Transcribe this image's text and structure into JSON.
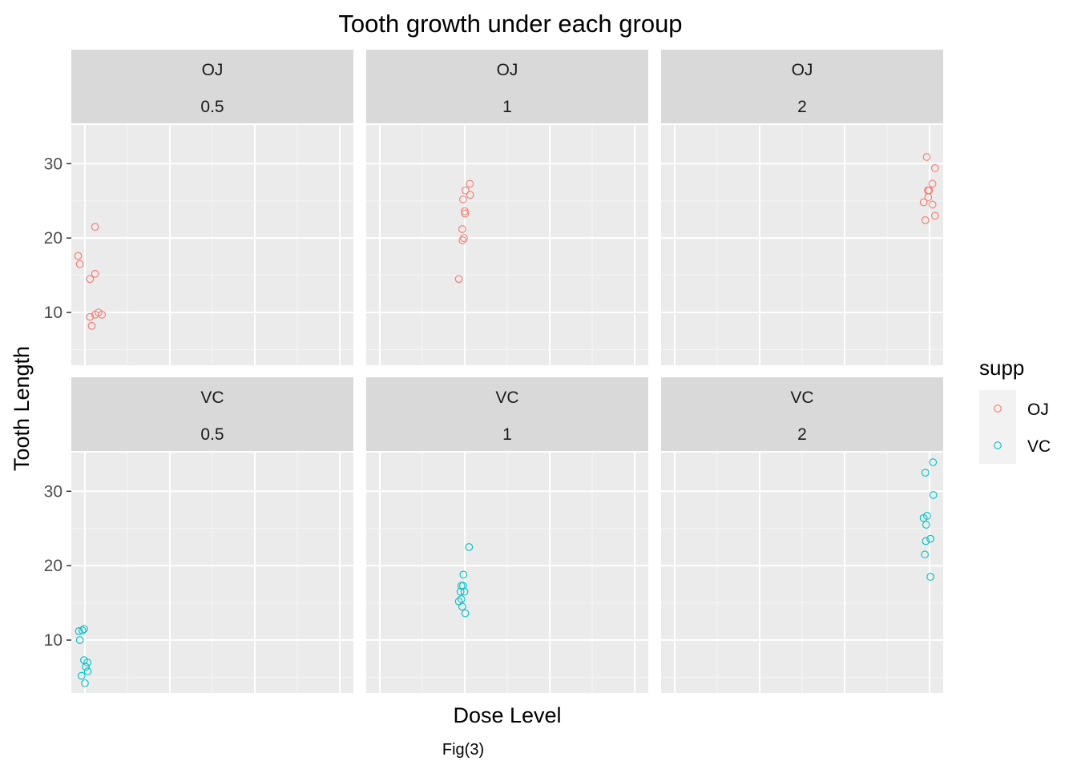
{
  "chart_data": {
    "type": "scatter",
    "title": "Tooth growth under each group",
    "xlabel": "Dose Level",
    "ylabel": "Tooth Length",
    "caption": "Fig(3)",
    "facet_rows": [
      "OJ",
      "VC"
    ],
    "facet_cols": [
      "0.5",
      "1",
      "2"
    ],
    "xlim": [
      0.42,
      2.08
    ],
    "ylim": [
      2.9,
      35.2
    ],
    "y_ticks": [
      10,
      20,
      30
    ],
    "x_ticks_labeled": false,
    "grid": true,
    "legend": {
      "title": "supp",
      "position": "right",
      "entries": [
        {
          "label": "OJ",
          "color": "#F8766D"
        },
        {
          "label": "VC",
          "color": "#00BFC4"
        }
      ]
    },
    "series": [
      {
        "name": "OJ",
        "color": "#F8766D",
        "panels": [
          {
            "col": "0.5",
            "points": [
              {
                "x": 0.46,
                "y": 17.6
              },
              {
                "x": 0.47,
                "y": 16.5
              },
              {
                "x": 0.53,
                "y": 14.5
              },
              {
                "x": 0.56,
                "y": 21.5
              },
              {
                "x": 0.56,
                "y": 15.2
              },
              {
                "x": 0.53,
                "y": 9.4
              },
              {
                "x": 0.54,
                "y": 8.2
              },
              {
                "x": 0.56,
                "y": 9.7
              },
              {
                "x": 0.58,
                "y": 10.0
              },
              {
                "x": 0.6,
                "y": 9.7
              }
            ]
          },
          {
            "col": "1",
            "points": [
              {
                "x": 0.965,
                "y": 14.5
              },
              {
                "x": 0.985,
                "y": 21.2
              },
              {
                "x": 0.987,
                "y": 19.7
              },
              {
                "x": 0.99,
                "y": 25.2
              },
              {
                "x": 0.995,
                "y": 20.0
              },
              {
                "x": 1.0,
                "y": 23.6
              },
              {
                "x": 1.002,
                "y": 23.3
              },
              {
                "x": 1.004,
                "y": 26.4
              },
              {
                "x": 1.03,
                "y": 27.3
              },
              {
                "x": 1.032,
                "y": 25.8
              }
            ]
          },
          {
            "col": "2",
            "points": [
              {
                "x": 1.965,
                "y": 24.8
              },
              {
                "x": 1.975,
                "y": 22.4
              },
              {
                "x": 1.983,
                "y": 30.9
              },
              {
                "x": 1.99,
                "y": 26.4
              },
              {
                "x": 1.992,
                "y": 25.5
              },
              {
                "x": 1.997,
                "y": 26.4
              },
              {
                "x": 2.017,
                "y": 27.3
              },
              {
                "x": 2.017,
                "y": 24.5
              },
              {
                "x": 2.032,
                "y": 29.4
              },
              {
                "x": 2.032,
                "y": 23.0
              }
            ]
          }
        ]
      },
      {
        "name": "VC",
        "color": "#00BFC4",
        "panels": [
          {
            "col": "0.5",
            "points": [
              {
                "x": 0.465,
                "y": 11.2
              },
              {
                "x": 0.47,
                "y": 10.0
              },
              {
                "x": 0.485,
                "y": 11.3
              },
              {
                "x": 0.48,
                "y": 5.2
              },
              {
                "x": 0.495,
                "y": 11.5
              },
              {
                "x": 0.495,
                "y": 7.3
              },
              {
                "x": 0.505,
                "y": 6.4
              },
              {
                "x": 0.5,
                "y": 4.2
              },
              {
                "x": 0.515,
                "y": 7.0
              },
              {
                "x": 0.517,
                "y": 5.8
              }
            ]
          },
          {
            "col": "1",
            "points": [
              {
                "x": 0.965,
                "y": 15.2
              },
              {
                "x": 0.975,
                "y": 16.5
              },
              {
                "x": 0.98,
                "y": 17.3
              },
              {
                "x": 0.98,
                "y": 15.5
              },
              {
                "x": 0.985,
                "y": 14.5
              },
              {
                "x": 0.99,
                "y": 17.3
              },
              {
                "x": 0.992,
                "y": 18.8
              },
              {
                "x": 0.998,
                "y": 16.5
              },
              {
                "x": 1.003,
                "y": 13.6
              },
              {
                "x": 1.025,
                "y": 22.5
              }
            ]
          },
          {
            "col": "2",
            "points": [
              {
                "x": 1.965,
                "y": 26.4
              },
              {
                "x": 1.972,
                "y": 21.5
              },
              {
                "x": 1.975,
                "y": 32.5
              },
              {
                "x": 1.978,
                "y": 23.3
              },
              {
                "x": 1.98,
                "y": 25.5
              },
              {
                "x": 1.985,
                "y": 26.7
              },
              {
                "x": 2.005,
                "y": 23.6
              },
              {
                "x": 2.005,
                "y": 18.5
              },
              {
                "x": 2.02,
                "y": 33.9
              },
              {
                "x": 2.022,
                "y": 29.5
              }
            ]
          }
        ]
      }
    ]
  }
}
